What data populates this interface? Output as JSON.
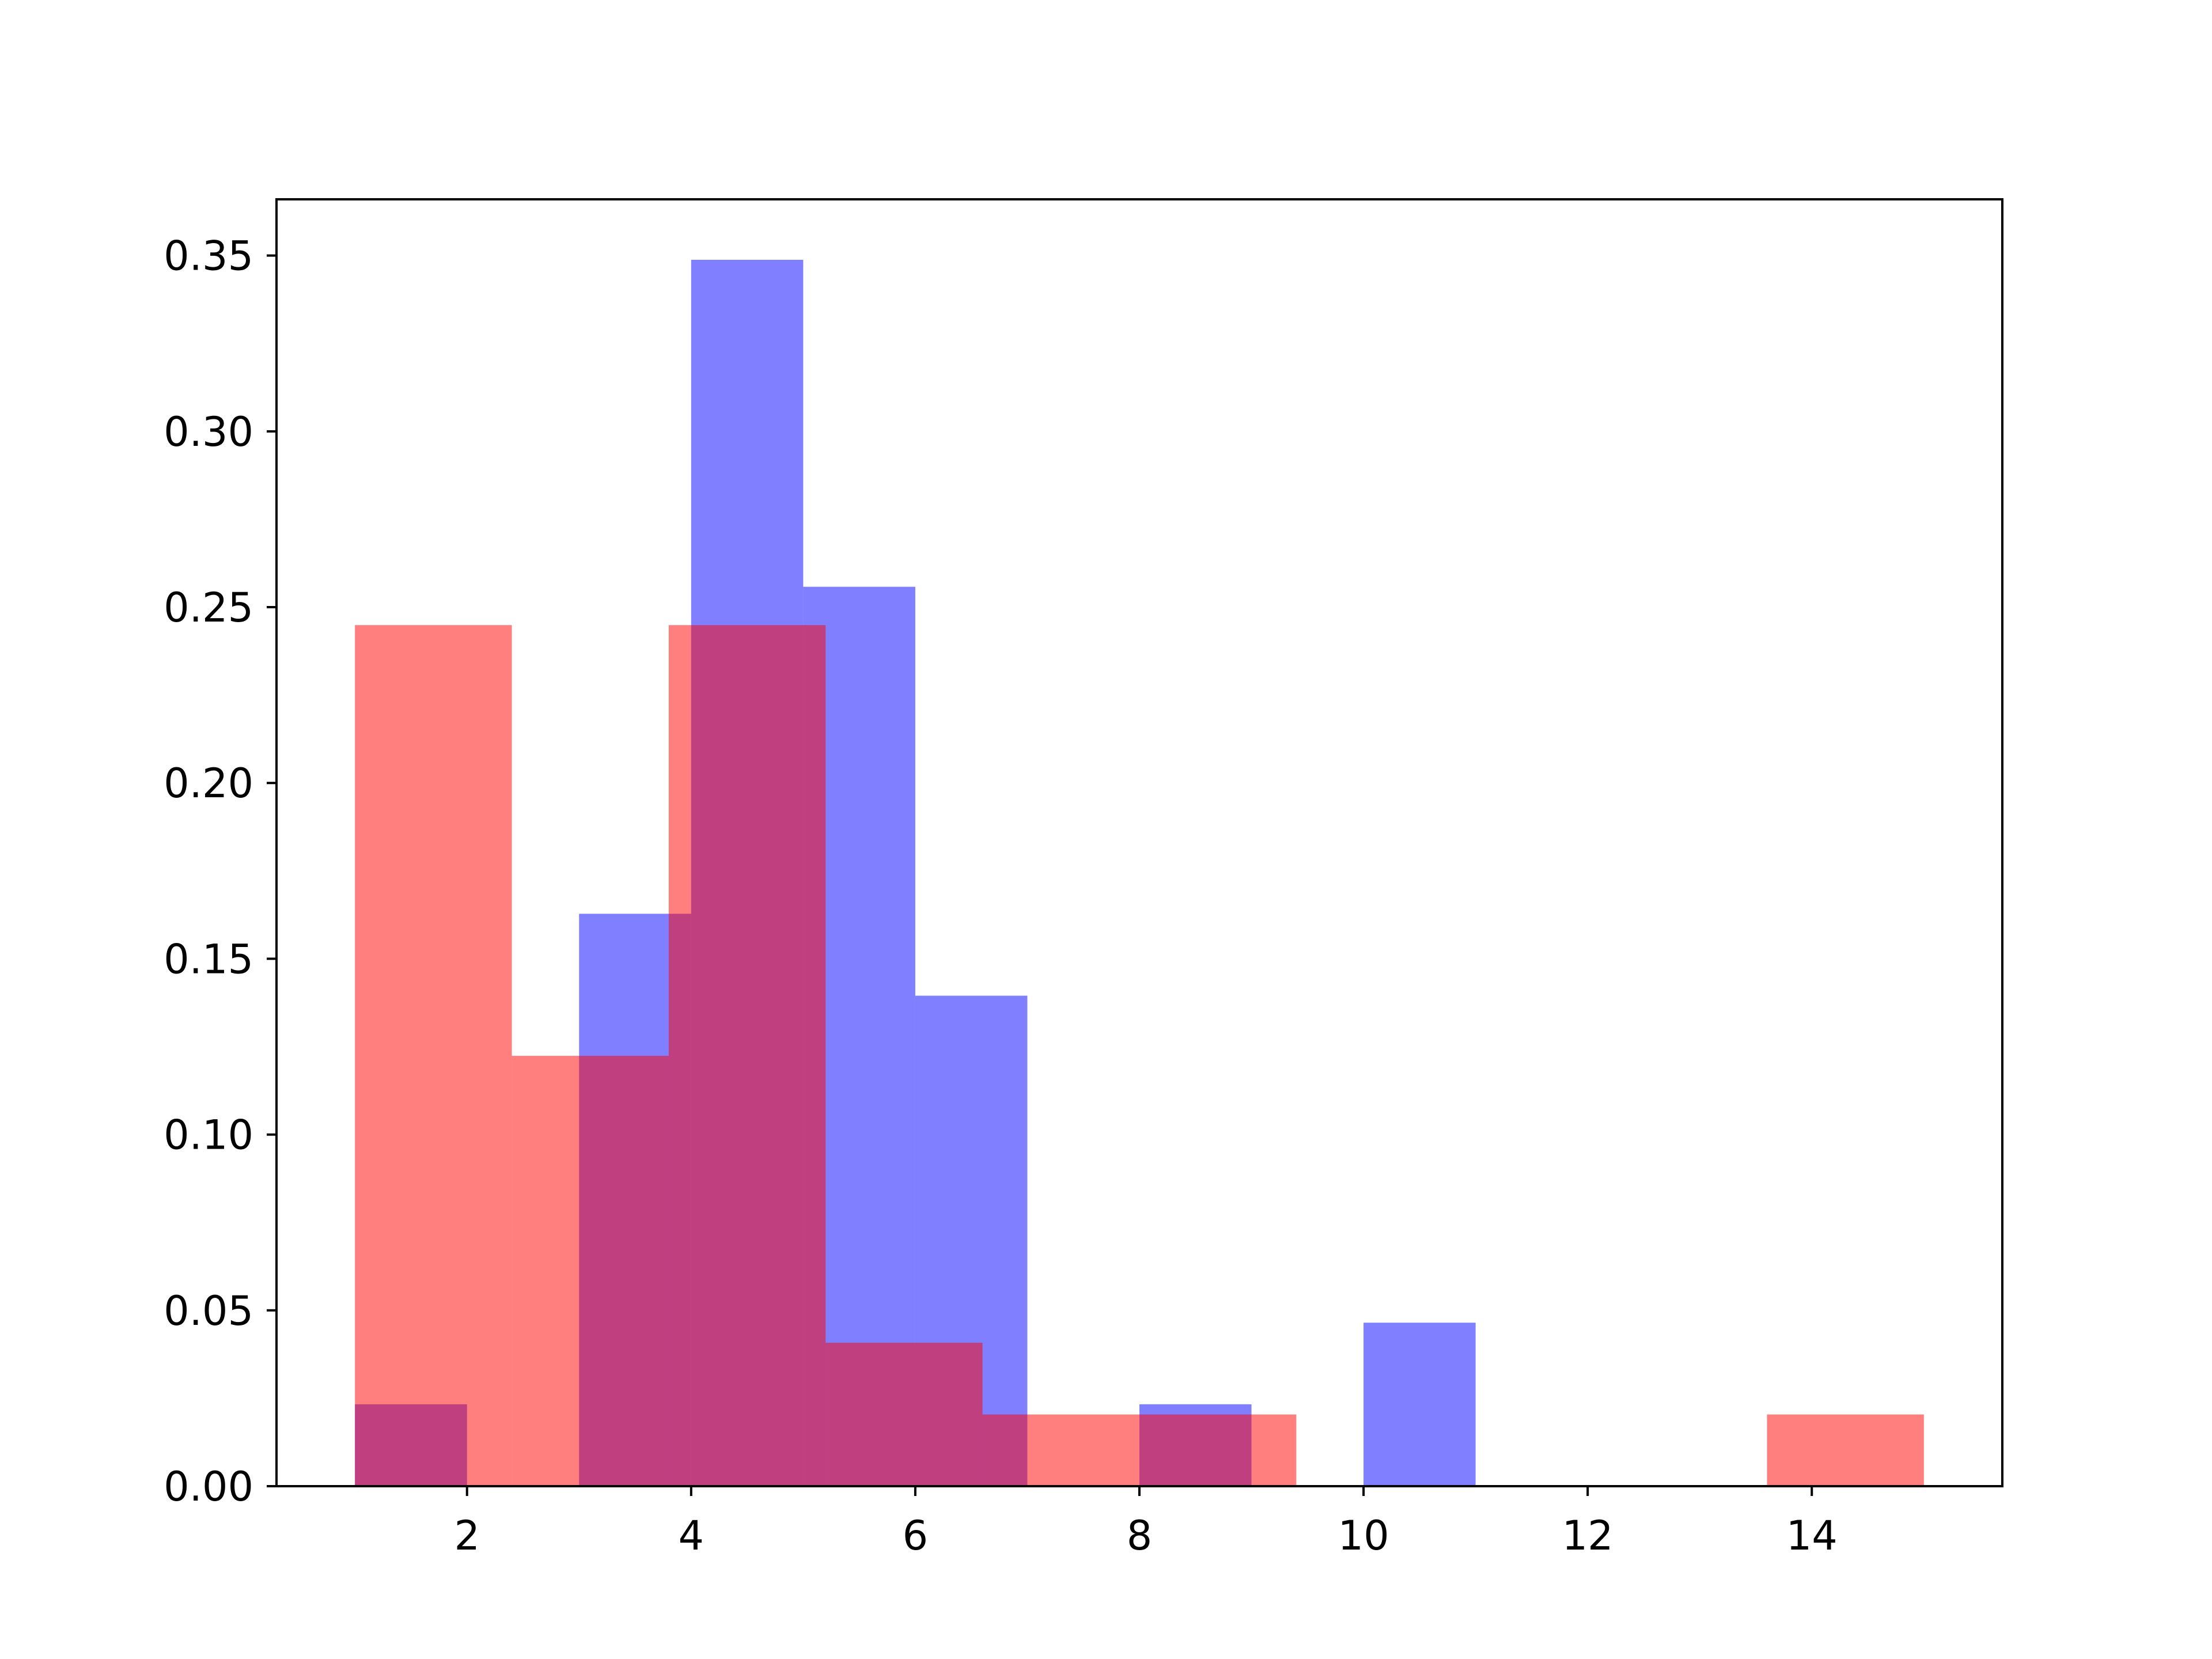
{
  "chart_data": {
    "type": "histogram",
    "title": "",
    "xlabel": "",
    "ylabel": "",
    "xlim": [
      0.3,
      15.7
    ],
    "ylim": [
      0,
      0.366
    ],
    "xticks": [
      2,
      4,
      6,
      8,
      10,
      12,
      14
    ],
    "yticks": [
      0.0,
      0.05,
      0.1,
      0.15,
      0.2,
      0.25,
      0.3,
      0.35
    ],
    "grid": false,
    "legend": "none",
    "series": [
      {
        "color": "#0000ff",
        "opacity": 0.5,
        "bins": [
          {
            "x0": 1.0,
            "x1": 2.0,
            "density": 0.0233
          },
          {
            "x0": 2.0,
            "x1": 3.0,
            "density": 0.0
          },
          {
            "x0": 3.0,
            "x1": 4.0,
            "density": 0.1628
          },
          {
            "x0": 4.0,
            "x1": 5.0,
            "density": 0.3488
          },
          {
            "x0": 5.0,
            "x1": 6.0,
            "density": 0.2558
          },
          {
            "x0": 6.0,
            "x1": 7.0,
            "density": 0.1395
          },
          {
            "x0": 7.0,
            "x1": 8.0,
            "density": 0.0
          },
          {
            "x0": 8.0,
            "x1": 9.0,
            "density": 0.0233
          },
          {
            "x0": 9.0,
            "x1": 10.0,
            "density": 0.0
          },
          {
            "x0": 10.0,
            "x1": 11.0,
            "density": 0.0465
          }
        ]
      },
      {
        "color": "#ff0000",
        "opacity": 0.5,
        "bins": [
          {
            "x0": 1.0,
            "x1": 2.4,
            "density": 0.2449
          },
          {
            "x0": 2.4,
            "x1": 3.8,
            "density": 0.1224
          },
          {
            "x0": 3.8,
            "x1": 5.2,
            "density": 0.2449
          },
          {
            "x0": 5.2,
            "x1": 6.6,
            "density": 0.0408
          },
          {
            "x0": 6.6,
            "x1": 8.0,
            "density": 0.0204
          },
          {
            "x0": 8.0,
            "x1": 9.4,
            "density": 0.0204
          },
          {
            "x0": 9.4,
            "x1": 10.8,
            "density": 0.0
          },
          {
            "x0": 10.8,
            "x1": 12.2,
            "density": 0.0
          },
          {
            "x0": 12.2,
            "x1": 13.6,
            "density": 0.0
          },
          {
            "x0": 13.6,
            "x1": 15.0,
            "density": 0.0204
          }
        ]
      }
    ]
  }
}
